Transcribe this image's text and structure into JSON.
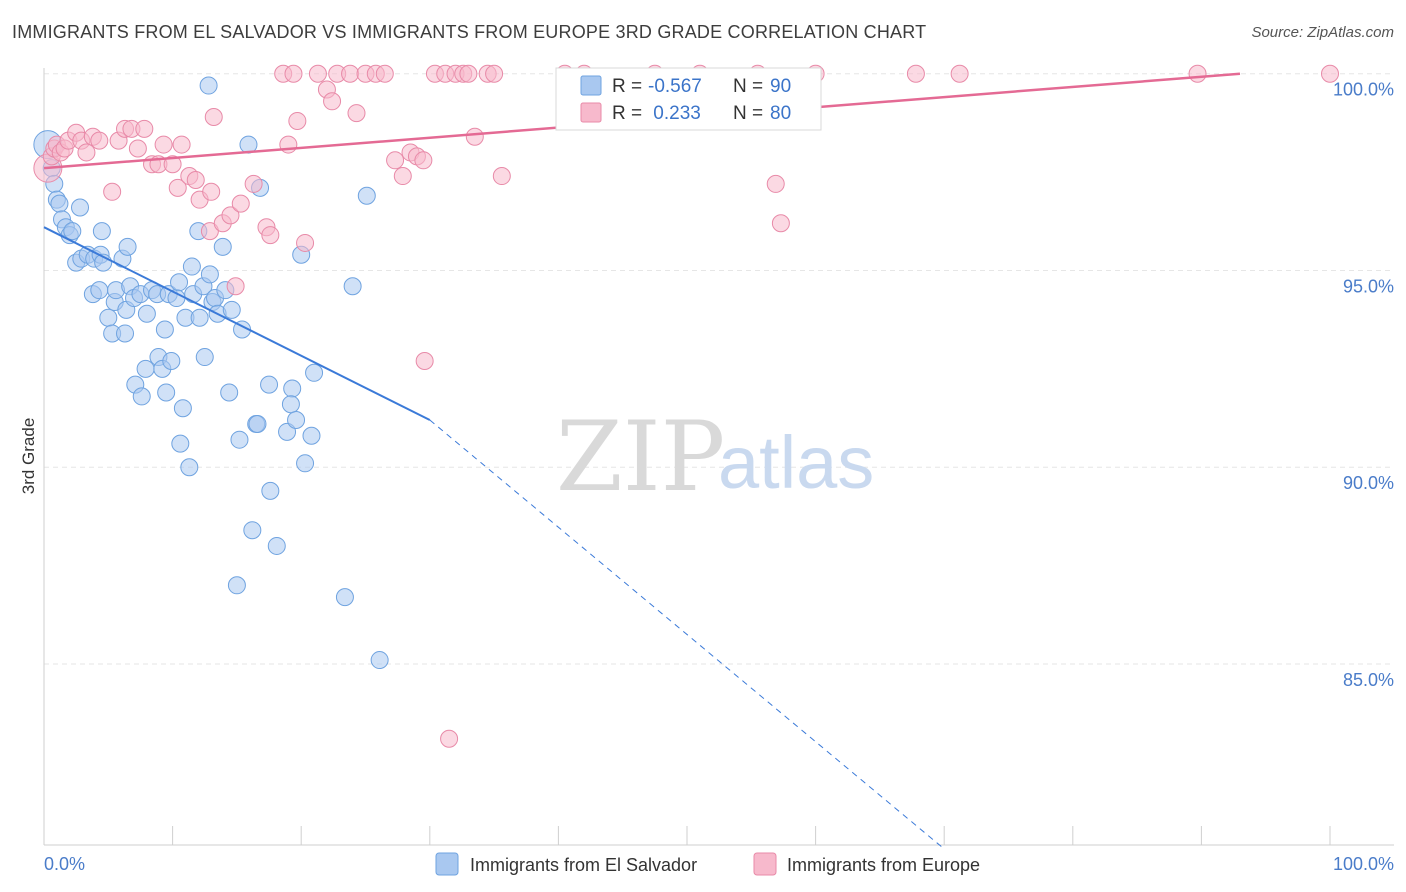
{
  "header": {
    "title": "IMMIGRANTS FROM EL SALVADOR VS IMMIGRANTS FROM EUROPE 3RD GRADE CORRELATION CHART",
    "source": "Source: ZipAtlas.com"
  },
  "watermark": {
    "zip": "ZIP",
    "atlas": "atlas"
  },
  "legend_box": {
    "rows": [
      {
        "r_label": "R =",
        "r_value": "-0.567",
        "n_label": "N =",
        "n_value": "90",
        "color": "#a9c8f0"
      },
      {
        "r_label": "R =",
        "r_value": " 0.233",
        "n_label": "N =",
        "n_value": "80",
        "color": "#f7b9cc"
      }
    ]
  },
  "bottom_legend": [
    {
      "label": "Immigrants from El Salvador",
      "color": "#a9c8f0"
    },
    {
      "label": "Immigrants from Europe",
      "color": "#f7b9cc"
    }
  ],
  "chart_data": {
    "type": "scatter",
    "title": "IMMIGRANTS FROM EL SALVADOR VS IMMIGRANTS FROM EUROPE 3RD GRADE CORRELATION CHART",
    "xlabel": "",
    "ylabel": "3rd Grade",
    "xlim": [
      0,
      100
    ],
    "ylim": [
      80.4,
      100.4
    ],
    "x_tick_labels": [
      "0.0%",
      "100.0%"
    ],
    "y_ticks": [
      {
        "value": 85,
        "label": "85.0%"
      },
      {
        "value": 90,
        "label": "90.0%"
      },
      {
        "value": 95,
        "label": "95.0%"
      },
      {
        "value": 100,
        "label": "100.0%"
      }
    ],
    "grid": true,
    "series": [
      {
        "name": "Immigrants from El Salvador",
        "color": "#6fa3e0",
        "fill": "#a9c8f0",
        "trend": {
          "x": [
            0,
            30
          ],
          "y": [
            96.1,
            91.2
          ],
          "dashed_to": [
            70,
            80.3
          ]
        },
        "points": [
          [
            0.3,
            98.2
          ],
          [
            0.6,
            97.6
          ],
          [
            0.8,
            97.2
          ],
          [
            1.0,
            96.8
          ],
          [
            1.2,
            96.7
          ],
          [
            1.4,
            96.3
          ],
          [
            1.7,
            96.1
          ],
          [
            2.0,
            95.9
          ],
          [
            2.2,
            96.0
          ],
          [
            2.8,
            96.6
          ],
          [
            2.5,
            95.2
          ],
          [
            2.9,
            95.3
          ],
          [
            3.4,
            95.4
          ],
          [
            3.8,
            94.4
          ],
          [
            3.9,
            95.3
          ],
          [
            4.3,
            94.5
          ],
          [
            4.4,
            95.4
          ],
          [
            4.5,
            96.0
          ],
          [
            4.6,
            95.2
          ],
          [
            5.0,
            93.8
          ],
          [
            5.3,
            93.4
          ],
          [
            5.5,
            94.2
          ],
          [
            5.6,
            94.5
          ],
          [
            6.1,
            95.3
          ],
          [
            6.3,
            93.4
          ],
          [
            6.4,
            94.0
          ],
          [
            6.5,
            95.6
          ],
          [
            6.7,
            94.6
          ],
          [
            7.0,
            94.3
          ],
          [
            7.1,
            92.1
          ],
          [
            7.5,
            94.4
          ],
          [
            7.6,
            91.8
          ],
          [
            7.9,
            92.5
          ],
          [
            8.0,
            93.9
          ],
          [
            8.4,
            94.5
          ],
          [
            8.8,
            94.4
          ],
          [
            8.9,
            92.8
          ],
          [
            9.2,
            92.5
          ],
          [
            9.4,
            93.5
          ],
          [
            9.5,
            91.9
          ],
          [
            9.7,
            94.4
          ],
          [
            9.9,
            92.7
          ],
          [
            10.3,
            94.3
          ],
          [
            10.5,
            94.7
          ],
          [
            10.6,
            90.6
          ],
          [
            10.8,
            91.5
          ],
          [
            11.0,
            93.8
          ],
          [
            11.3,
            90.0
          ],
          [
            11.5,
            95.1
          ],
          [
            11.6,
            94.4
          ],
          [
            12.0,
            96.0
          ],
          [
            12.1,
            93.8
          ],
          [
            12.4,
            94.6
          ],
          [
            12.5,
            92.8
          ],
          [
            12.8,
            99.7
          ],
          [
            12.9,
            94.9
          ],
          [
            13.1,
            94.2
          ],
          [
            13.3,
            94.3
          ],
          [
            13.5,
            93.9
          ],
          [
            13.9,
            95.6
          ],
          [
            14.1,
            94.5
          ],
          [
            14.4,
            91.9
          ],
          [
            14.6,
            94.0
          ],
          [
            15.0,
            87.0
          ],
          [
            15.2,
            90.7
          ],
          [
            15.4,
            93.5
          ],
          [
            15.9,
            98.2
          ],
          [
            16.2,
            88.4
          ],
          [
            16.5,
            91.1
          ],
          [
            16.6,
            91.1
          ],
          [
            16.8,
            97.1
          ],
          [
            17.5,
            92.1
          ],
          [
            17.6,
            89.4
          ],
          [
            18.1,
            88.0
          ],
          [
            18.9,
            90.9
          ],
          [
            19.3,
            92.0
          ],
          [
            19.2,
            91.6
          ],
          [
            19.6,
            91.2
          ],
          [
            20.0,
            95.4
          ],
          [
            20.3,
            90.1
          ],
          [
            20.8,
            90.8
          ],
          [
            21.0,
            92.4
          ],
          [
            23.4,
            86.7
          ],
          [
            24.0,
            94.6
          ],
          [
            25.1,
            96.9
          ],
          [
            26.1,
            85.1
          ]
        ]
      },
      {
        "name": "Immigrants from Europe",
        "color": "#e88aa8",
        "fill": "#f7b9cc",
        "trend": {
          "x": [
            0,
            93
          ],
          "y": [
            97.6,
            100.0
          ]
        },
        "points": [
          [
            0.3,
            97.6
          ],
          [
            0.6,
            97.9
          ],
          [
            0.8,
            98.1
          ],
          [
            1.0,
            98.2
          ],
          [
            1.3,
            98.0
          ],
          [
            1.6,
            98.1
          ],
          [
            1.9,
            98.3
          ],
          [
            2.5,
            98.5
          ],
          [
            2.9,
            98.3
          ],
          [
            3.3,
            98.0
          ],
          [
            3.8,
            98.4
          ],
          [
            4.3,
            98.3
          ],
          [
            5.3,
            97.0
          ],
          [
            5.8,
            98.3
          ],
          [
            6.3,
            98.6
          ],
          [
            6.8,
            98.6
          ],
          [
            7.3,
            98.1
          ],
          [
            7.8,
            98.6
          ],
          [
            8.4,
            97.7
          ],
          [
            8.9,
            97.7
          ],
          [
            9.3,
            98.2
          ],
          [
            10.0,
            97.7
          ],
          [
            10.4,
            97.1
          ],
          [
            10.7,
            98.2
          ],
          [
            11.3,
            97.4
          ],
          [
            11.8,
            97.3
          ],
          [
            12.1,
            96.8
          ],
          [
            12.9,
            96.0
          ],
          [
            13.0,
            97.0
          ],
          [
            13.2,
            98.9
          ],
          [
            13.9,
            96.2
          ],
          [
            14.5,
            96.4
          ],
          [
            14.9,
            94.6
          ],
          [
            15.3,
            96.7
          ],
          [
            16.3,
            97.2
          ],
          [
            17.3,
            96.1
          ],
          [
            17.6,
            95.9
          ],
          [
            18.6,
            100.0
          ],
          [
            19.0,
            98.2
          ],
          [
            19.4,
            100.0
          ],
          [
            19.7,
            98.8
          ],
          [
            20.3,
            95.7
          ],
          [
            21.3,
            100.0
          ],
          [
            22.0,
            99.6
          ],
          [
            22.4,
            99.3
          ],
          [
            22.8,
            100.0
          ],
          [
            23.8,
            100.0
          ],
          [
            24.3,
            99.0
          ],
          [
            25.0,
            100.0
          ],
          [
            25.8,
            100.0
          ],
          [
            26.5,
            100.0
          ],
          [
            27.3,
            97.8
          ],
          [
            27.9,
            97.4
          ],
          [
            28.5,
            98.0
          ],
          [
            29.0,
            97.9
          ],
          [
            29.5,
            97.8
          ],
          [
            29.6,
            92.7
          ],
          [
            30.4,
            100.0
          ],
          [
            31.2,
            100.0
          ],
          [
            31.5,
            83.1
          ],
          [
            32.0,
            100.0
          ],
          [
            32.6,
            100.0
          ],
          [
            33.0,
            100.0
          ],
          [
            33.5,
            98.4
          ],
          [
            34.5,
            100.0
          ],
          [
            35.0,
            100.0
          ],
          [
            35.6,
            97.4
          ],
          [
            40.5,
            100.0
          ],
          [
            42.0,
            100.0
          ],
          [
            47.5,
            100.0
          ],
          [
            51.0,
            100.0
          ],
          [
            55.5,
            100.0
          ],
          [
            56.9,
            97.2
          ],
          [
            57.3,
            96.2
          ],
          [
            60.0,
            100.0
          ],
          [
            67.8,
            100.0
          ],
          [
            71.2,
            100.0
          ],
          [
            89.7,
            100.0
          ],
          [
            100.0,
            100.0
          ]
        ]
      }
    ]
  }
}
